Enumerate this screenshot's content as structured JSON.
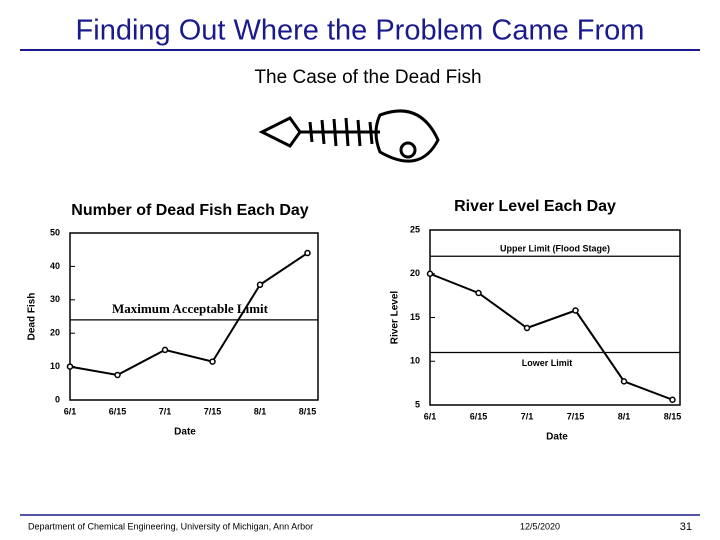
{
  "title": "Finding Out Where the Problem Came From",
  "subtitle": "The Case of the Dead Fish",
  "footer": {
    "left": "Department of Chemical Engineering, University of Michigan, Ann Arbor",
    "date": "12/5/2020",
    "page": "31"
  },
  "chart_data": [
    {
      "type": "line",
      "title": "Number of Dead Fish Each Day",
      "x_label": "Date",
      "y_label": "Dead Fish",
      "categories": [
        "6/1",
        "6/15",
        "7/1",
        "7/15",
        "8/1",
        "8/15"
      ],
      "series": [
        {
          "name": "Dead Fish",
          "color": "#000000",
          "values": [
            10,
            7.5,
            15,
            11.5,
            34.5,
            44
          ]
        }
      ],
      "ylim": [
        0,
        50
      ],
      "yticks": [
        0,
        10,
        20,
        30,
        40,
        50
      ],
      "reference_lines": [
        {
          "label": "Maximum Acceptable Limit",
          "value": 24
        }
      ]
    },
    {
      "type": "line",
      "title": "River Level Each Day",
      "x_label": "Date",
      "y_label": "River Level",
      "categories": [
        "6/1",
        "6/15",
        "7/1",
        "7/15",
        "8/1",
        "8/15"
      ],
      "series": [
        {
          "name": "River Level",
          "color": "#000000",
          "values": [
            20,
            17.8,
            13.8,
            15.8,
            7.7,
            5.6
          ]
        }
      ],
      "ylim": [
        5,
        25
      ],
      "yticks": [
        5,
        10,
        15,
        20,
        25
      ],
      "reference_lines": [
        {
          "label": "Upper Limit (Flood Stage)",
          "value": 22
        },
        {
          "label": "Lower Limit",
          "value": 11
        }
      ]
    }
  ]
}
